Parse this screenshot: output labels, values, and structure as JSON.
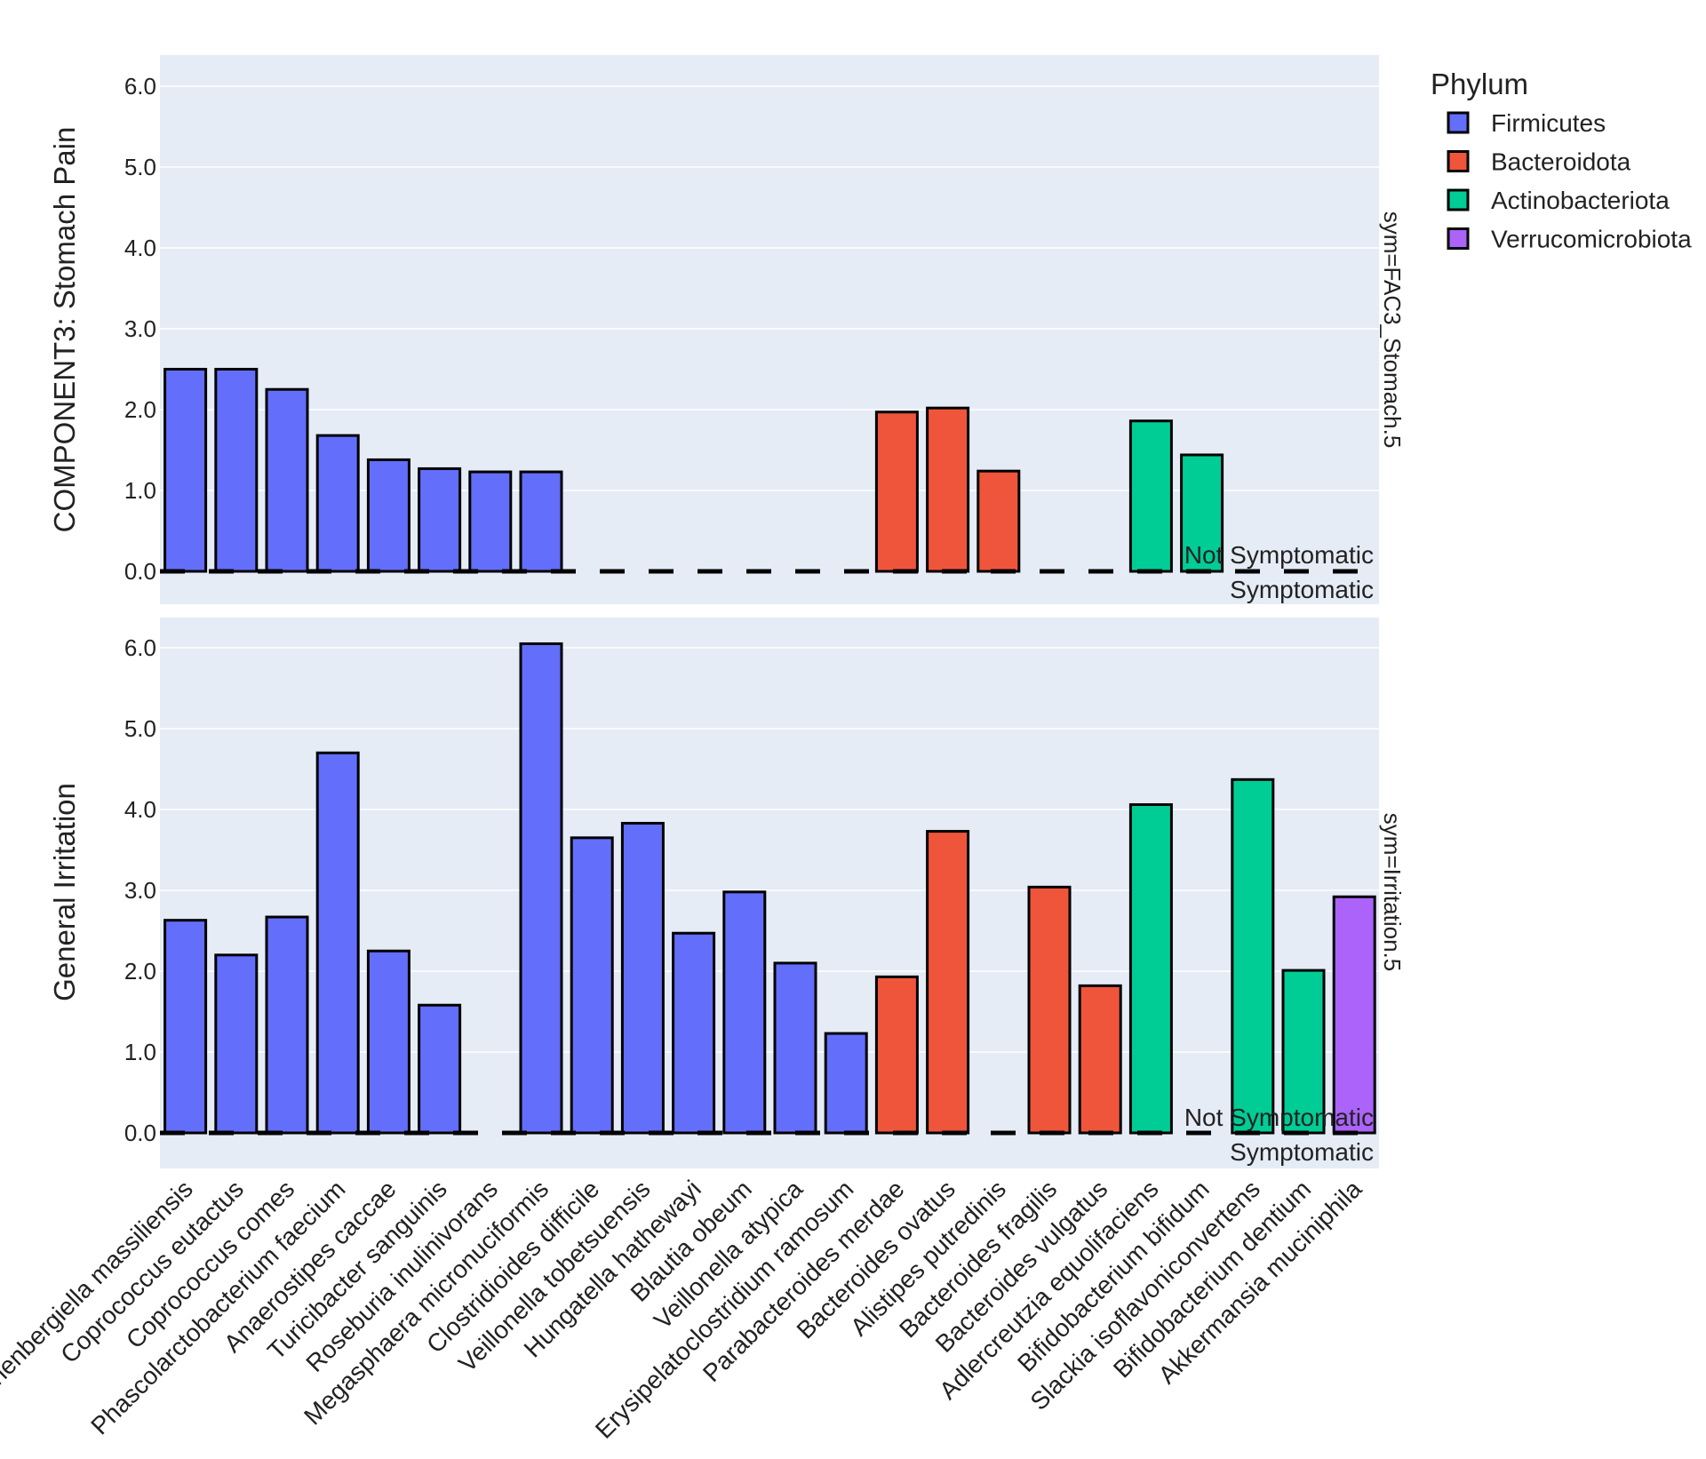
{
  "chart_data": {
    "type": "bar",
    "categories": [
      "Lachnospiraceae bacterium / Ruthenibergiella massiliensis",
      "Coprococcus eutactus",
      "Coprococcus comes",
      "Phascolarctobacterium faecium",
      "Anaerostipes caccae",
      "Turicibacter sanguinis",
      "Roseburia inulinivorans",
      "Megasphaera micronuciformis",
      "Clostridioides difficile",
      "Veillonella tobetsuensis",
      "Hungatella hathewayi",
      "Blautia obeum",
      "Veillonella atypica",
      "Erysipelatoclostridium ramosum",
      "Parabacteroides merdae",
      "Bacteroides ovatus",
      "Alistipes putredinis",
      "Bacteroides fragilis",
      "Bacteroides vulgatus",
      "Adlercreutzia equolifaciens",
      "Bifidobacterium bifidum",
      "Slackia isoflavoniconvertens",
      "Bifidobacterium dentium",
      "Akkermansia muciniphila"
    ],
    "category_labels": [
      "Ruthenbergiella massiliensis",
      "Coprococcus eutactus",
      "Coprococcus comes",
      "Phascolarctobacterium faecium",
      "Anaerostipes caccae",
      "Turicibacter sanguinis",
      "Roseburia inulinivorans",
      "Megasphaera micronuciformis",
      "Clostridioides difficile",
      "Veillonella tobetsuensis",
      "Hungatella hathewayi",
      "Blautia obeum",
      "Veillonella atypica",
      "Erysipelatoclostridium ramosum",
      "Parabacteroides merdae",
      "Bacteroides ovatus",
      "Alistipes putredinis",
      "Bacteroides fragilis",
      "Bacteroides vulgatus",
      "Adlercreutzia equolifaciens",
      "Bifidobacterium bifidum",
      "Slackia isoflavoniconvertens",
      "Bifidobacterium dentium",
      "Akkermansia muciniphila"
    ],
    "phylum": [
      "Firmicutes",
      "Firmicutes",
      "Firmicutes",
      "Firmicutes",
      "Firmicutes",
      "Firmicutes",
      "Firmicutes",
      "Firmicutes",
      "Firmicutes",
      "Firmicutes",
      "Firmicutes",
      "Firmicutes",
      "Firmicutes",
      "Firmicutes",
      "Bacteroidota",
      "Bacteroidota",
      "Bacteroidota",
      "Bacteroidota",
      "Bacteroidota",
      "Actinobacteriota",
      "Actinobacteriota",
      "Actinobacteriota",
      "Actinobacteriota",
      "Verrucomicrobiota"
    ],
    "legend": {
      "title": "Phylum",
      "entries": [
        {
          "name": "Firmicutes",
          "color": "#636efa"
        },
        {
          "name": "Bacteroidota",
          "color": "#ef553b"
        },
        {
          "name": "Actinobacteriota",
          "color": "#00cc96"
        },
        {
          "name": "Verrucomicrobiota",
          "color": "#ab63fa"
        }
      ]
    },
    "ylim": [
      0,
      6.3
    ],
    "yticks": [
      "0.0",
      "1.0",
      "2.0",
      "3.0",
      "4.0",
      "5.0",
      "6.0"
    ],
    "panels": [
      {
        "ylabel": "COMPONENT3: Stomach Pain",
        "facet_label": "sym=FAC3_Stomach.5",
        "values": [
          2.5,
          2.5,
          2.25,
          1.68,
          1.38,
          1.27,
          1.23,
          1.23,
          null,
          null,
          null,
          null,
          null,
          null,
          1.97,
          2.02,
          1.24,
          null,
          null,
          1.86,
          1.44,
          null,
          null,
          null
        ],
        "reference_line": {
          "value": 0,
          "label_above": "Not Symptomatic",
          "label_below": "Symptomatic"
        }
      },
      {
        "ylabel": "General Irritation",
        "facet_label": "sym=Irritation.5",
        "values": [
          2.63,
          2.2,
          2.67,
          4.7,
          2.25,
          1.58,
          null,
          6.05,
          3.65,
          3.83,
          2.47,
          2.98,
          2.1,
          1.23,
          1.93,
          3.73,
          null,
          3.04,
          1.82,
          4.06,
          null,
          4.37,
          2.01,
          2.92
        ],
        "reference_line": {
          "value": 0,
          "label_above": "Not Symptomatic",
          "label_below": "Symptomatic"
        }
      }
    ]
  }
}
